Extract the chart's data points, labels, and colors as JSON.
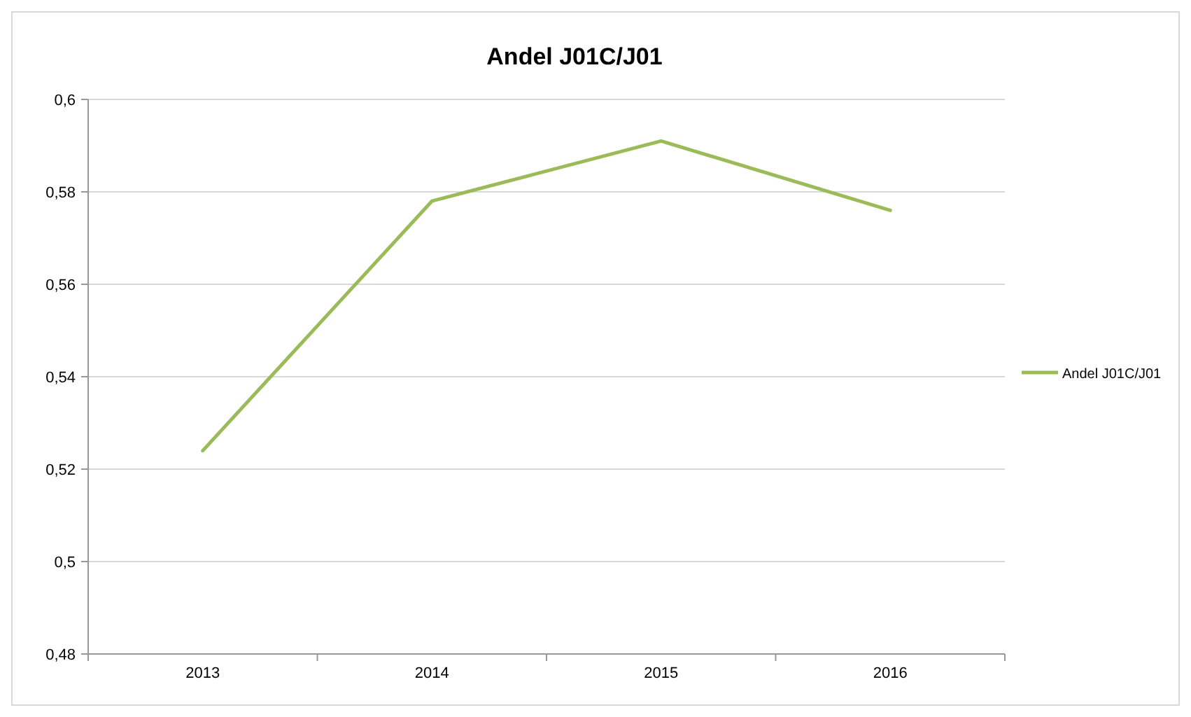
{
  "chart_data": {
    "type": "line",
    "title": "Andel J01C/J01",
    "categories": [
      "2013",
      "2014",
      "2015",
      "2016"
    ],
    "series": [
      {
        "name": "Andel J01C/J01",
        "color": "#9bbb59",
        "values": [
          0.524,
          0.578,
          0.591,
          0.576
        ]
      }
    ],
    "ylim": [
      0.48,
      0.6
    ],
    "yticks": [
      {
        "value": 0.48,
        "label": "0,48"
      },
      {
        "value": 0.5,
        "label": "0,5"
      },
      {
        "value": 0.52,
        "label": "0,52"
      },
      {
        "value": 0.54,
        "label": "0,54"
      },
      {
        "value": 0.56,
        "label": "0,56"
      },
      {
        "value": 0.58,
        "label": "0,58"
      },
      {
        "value": 0.6,
        "label": "0,6"
      }
    ],
    "grid": "y",
    "legend": "right",
    "marker": "none",
    "line_style": "solid"
  }
}
